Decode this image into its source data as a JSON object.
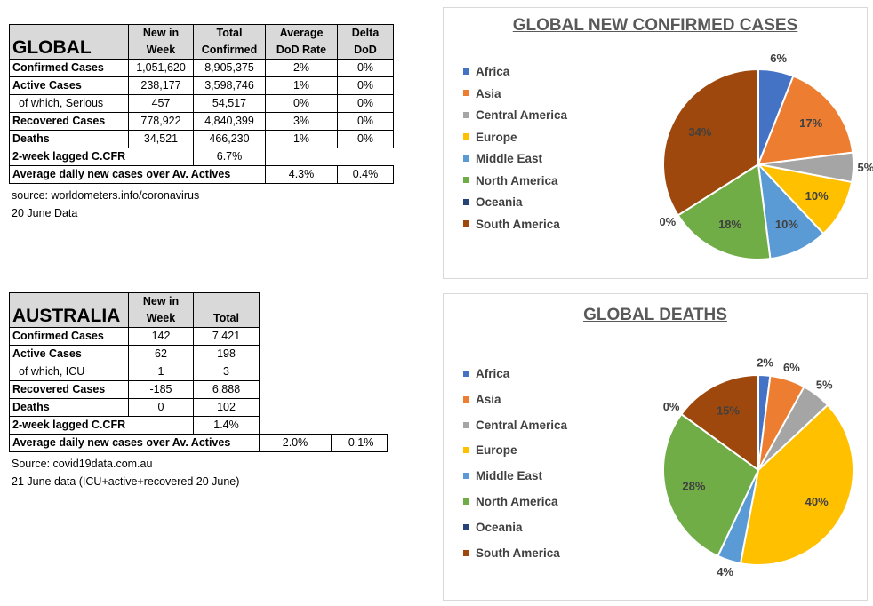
{
  "global_table": {
    "title": "GLOBAL",
    "headers": [
      [
        "New in",
        "Week"
      ],
      [
        "Total",
        "Confirmed"
      ],
      [
        "Average",
        "DoD  Rate"
      ],
      [
        "Delta",
        "DoD"
      ]
    ],
    "rows": [
      {
        "label": "Confirmed Cases",
        "sub": false,
        "values": [
          "1,051,620",
          "8,905,375",
          "2%",
          "0%"
        ]
      },
      {
        "label": "Active Cases",
        "sub": false,
        "values": [
          "238,177",
          "3,598,746",
          "1%",
          "0%"
        ]
      },
      {
        "label": "of which, Serious",
        "sub": true,
        "values": [
          "457",
          "54,517",
          "0%",
          "0%"
        ]
      },
      {
        "label": "Recovered Cases",
        "sub": false,
        "values": [
          "778,922",
          "4,840,399",
          "3%",
          "0%"
        ]
      },
      {
        "label": "Deaths",
        "sub": false,
        "values": [
          "34,521",
          "466,230",
          "1%",
          "0%"
        ]
      }
    ],
    "cfr_label": "2-week lagged C.CFR",
    "cfr_value": "6.7%",
    "avg_label": "Average daily new cases over Av. Actives",
    "avg_value1": "4.3%",
    "avg_value2": "0.4%",
    "source": "source: worldometers.info/coronavirus",
    "date_note": "20 June Data"
  },
  "australia_table": {
    "title": "AUSTRALIA",
    "headers": [
      [
        "New in",
        "Week"
      ],
      [
        "",
        "Total"
      ]
    ],
    "rows": [
      {
        "label": "Confirmed Cases",
        "sub": false,
        "values": [
          "142",
          "7,421"
        ]
      },
      {
        "label": "Active Cases",
        "sub": false,
        "values": [
          "62",
          "198"
        ]
      },
      {
        "label": "of which, ICU",
        "sub": true,
        "values": [
          "1",
          "3"
        ]
      },
      {
        "label": "Recovered Cases",
        "sub": false,
        "values": [
          "-185",
          "6,888"
        ]
      },
      {
        "label": "Deaths",
        "sub": false,
        "values": [
          "0",
          "102"
        ]
      }
    ],
    "cfr_label": "2-week lagged C.CFR",
    "cfr_value": "1.4%",
    "avg_label": "Average daily new cases over Av. Actives",
    "avg_value1": "2.0%",
    "avg_value2": "-0.1%",
    "source": "Source: covid19data.com.au",
    "date_note": "21 June data (ICU+active+recovered 20 June)"
  },
  "colors": {
    "Africa": "#4472c4",
    "Asia": "#ed7d31",
    "Central America": "#a5a5a5",
    "Europe": "#ffc000",
    "Middle East": "#5b9bd5",
    "North America": "#70ad47",
    "Oceania": "#264478",
    "South America": "#9e480e"
  },
  "chart_data": [
    {
      "type": "pie",
      "title": "GLOBAL NEW CONFIRMED CASES",
      "categories": [
        "Africa",
        "Asia",
        "Central America",
        "Europe",
        "Middle East",
        "North America",
        "Oceania",
        "South America"
      ],
      "values": [
        6,
        17,
        5,
        10,
        10,
        18,
        0,
        34
      ],
      "labels": [
        "6%",
        "17%",
        "5%",
        "10%",
        "10%",
        "18%",
        "0%",
        "34%"
      ],
      "legend": "left"
    },
    {
      "type": "pie",
      "title": "GLOBAL DEATHS",
      "categories": [
        "Africa",
        "Asia",
        "Central America",
        "Europe",
        "Middle East",
        "North America",
        "Oceania",
        "South America"
      ],
      "values": [
        2,
        6,
        5,
        40,
        4,
        28,
        0,
        15
      ],
      "labels": [
        "2%",
        "6%",
        "5%",
        "40%",
        "4%",
        "28%",
        "0%",
        "15%"
      ],
      "legend": "left"
    }
  ]
}
